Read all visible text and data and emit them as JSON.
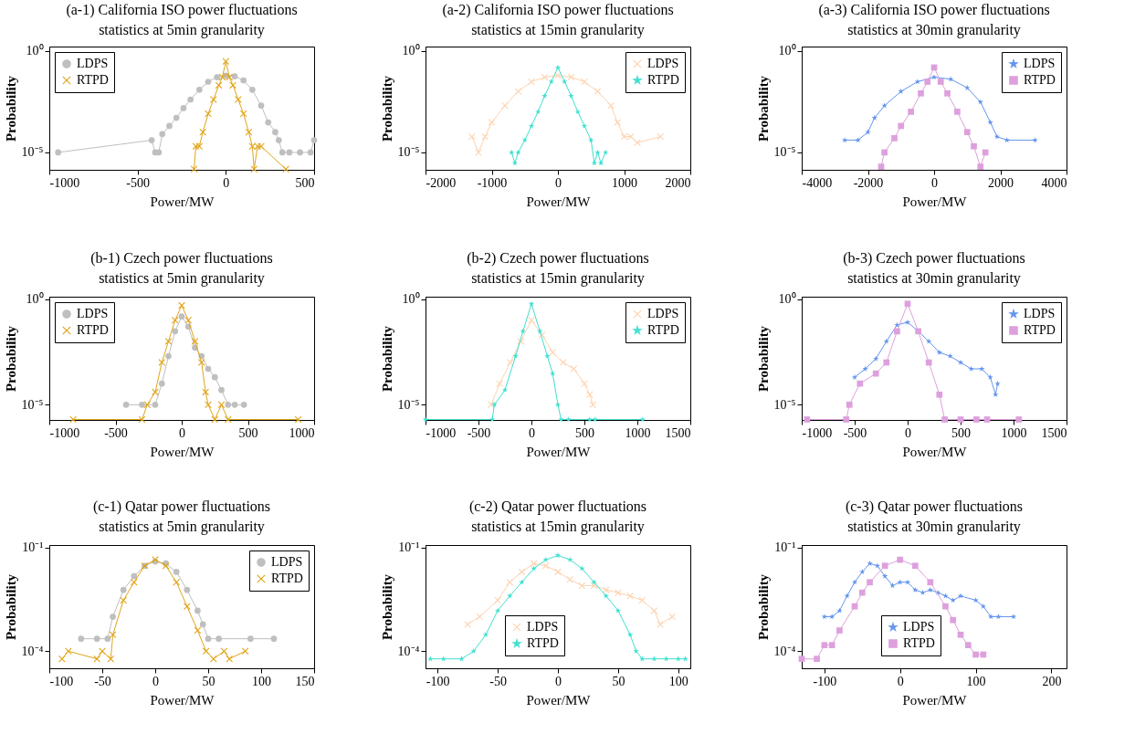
{
  "chart_data": [
    {
      "type": "line",
      "title": "(a-1) California ISO power fluctuations\nstatistics at 5min granularity",
      "xlabel": "Power/MW",
      "ylabel": "Probability",
      "log": "y",
      "legend": "top left",
      "xlim": [
        -1000,
        500
      ],
      "xticks": [
        -1000,
        -500,
        0,
        500
      ],
      "ylim": [
        1.4e-06,
        1.6
      ],
      "yticks": [
        {
          "value": 1,
          "label": "10⁰"
        },
        {
          "value": 1e-05,
          "label": "10⁻⁵"
        }
      ],
      "series": [
        {
          "name": "LDPS",
          "color": "#bfbfbf",
          "marker": "circle",
          "x": [
            -950,
            -420,
            -400,
            -380,
            -360,
            -320,
            -280,
            -240,
            -200,
            -150,
            -100,
            -50,
            0,
            50,
            100,
            150,
            200,
            240,
            280,
            300,
            320,
            360,
            420,
            480,
            500
          ],
          "values": [
            1e-05,
            4e-05,
            1e-05,
            1e-05,
            8e-05,
            0.0002,
            0.0005,
            0.0015,
            0.004,
            0.012,
            0.03,
            0.05,
            0.06,
            0.055,
            0.035,
            0.012,
            0.002,
            0.0003,
            0.0001,
            4e-05,
            1e-05,
            1e-05,
            1e-05,
            1e-05,
            4e-05
          ]
        },
        {
          "name": "RTPD",
          "color": "#e0a419",
          "marker": "cross",
          "x": [
            -180,
            -170,
            -150,
            -130,
            -100,
            -70,
            -40,
            -20,
            0,
            20,
            40,
            70,
            100,
            130,
            150,
            160,
            180,
            200,
            340
          ],
          "values": [
            1.5e-06,
            2e-05,
            2e-05,
            0.0001,
            0.0008,
            0.004,
            0.02,
            0.05,
            0.3,
            0.05,
            0.02,
            0.004,
            0.0008,
            0.0001,
            2e-05,
            1.5e-06,
            2e-05,
            2e-05,
            1.5e-06
          ]
        }
      ]
    },
    {
      "type": "line",
      "title": "(a-2) California ISO power fluctuations\nstatistics at 15min granularity",
      "xlabel": "Power/MW",
      "ylabel": "Probability",
      "log": "y",
      "legend": "top right",
      "xlim": [
        -2000,
        2000
      ],
      "xticks": [
        -2000,
        -1000,
        0,
        1000,
        2000
      ],
      "ylim": [
        1.4e-06,
        1.6
      ],
      "yticks": [
        {
          "value": 1,
          "label": "10⁰"
        },
        {
          "value": 1e-05,
          "label": "10⁻⁵"
        }
      ],
      "series": [
        {
          "name": "LDPS",
          "color": "#fdd3b0",
          "marker": "cross",
          "x": [
            -1300,
            -1200,
            -1100,
            -1000,
            -800,
            -600,
            -400,
            -200,
            0,
            200,
            400,
            600,
            800,
            900,
            1000,
            1100,
            1200,
            1550
          ],
          "values": [
            6e-05,
            1e-05,
            6e-05,
            0.0003,
            0.002,
            0.01,
            0.03,
            0.05,
            0.06,
            0.05,
            0.03,
            0.01,
            0.002,
            0.0003,
            6e-05,
            6e-05,
            3e-05,
            6e-05
          ]
        },
        {
          "name": "RTPD",
          "color": "#40e0d0",
          "marker": "star",
          "x": [
            -700,
            -650,
            -600,
            -500,
            -400,
            -300,
            -200,
            -100,
            0,
            100,
            200,
            300,
            400,
            500,
            550,
            600,
            650,
            720
          ],
          "values": [
            1e-05,
            3e-06,
            1e-05,
            4e-05,
            0.0002,
            0.001,
            0.006,
            0.03,
            0.15,
            0.03,
            0.006,
            0.001,
            0.0002,
            4e-05,
            3e-06,
            1e-05,
            3e-06,
            1e-05
          ]
        }
      ]
    },
    {
      "type": "line",
      "title": "(a-3) California ISO power fluctuations\nstatistics at 30min granularity",
      "xlabel": "Power/MW",
      "ylabel": "Probability",
      "log": "y",
      "legend": "top right",
      "xlim": [
        -4000,
        4000
      ],
      "xticks": [
        -4000,
        -2000,
        0,
        2000,
        4000
      ],
      "ylim": [
        1.4e-06,
        1.6
      ],
      "yticks": [
        {
          "value": 1,
          "label": "10⁰"
        },
        {
          "value": 1e-05,
          "label": "10⁻⁵"
        }
      ],
      "series": [
        {
          "name": "LDPS",
          "color": "#6495ed",
          "marker": "star",
          "x": [
            -2700,
            -2300,
            -2000,
            -1800,
            -1500,
            -1000,
            -500,
            0,
            500,
            1000,
            1400,
            1700,
            1900,
            2200,
            3050
          ],
          "values": [
            4e-05,
            4e-05,
            0.0001,
            0.0005,
            0.002,
            0.01,
            0.03,
            0.05,
            0.04,
            0.015,
            0.003,
            0.0003,
            6e-05,
            4e-05,
            4e-05
          ]
        },
        {
          "name": "RTPD",
          "color": "#dda0dd",
          "marker": "square",
          "x": [
            -1600,
            -1500,
            -1200,
            -1000,
            -700,
            -400,
            -200,
            0,
            200,
            400,
            700,
            1000,
            1200,
            1400,
            1550
          ],
          "values": [
            2e-06,
            1e-05,
            5e-05,
            0.0002,
            0.001,
            0.008,
            0.03,
            0.15,
            0.03,
            0.008,
            0.001,
            0.0001,
            2e-05,
            2e-06,
            1e-05
          ]
        }
      ]
    },
    {
      "type": "line",
      "title": "(b-1) Czech power fluctuations\nstatistics at 5min granularity",
      "xlabel": "Power/MW",
      "ylabel": "Probability",
      "log": "y",
      "legend": "top left",
      "xlim": [
        -1000,
        1000
      ],
      "xticks": [
        -1000,
        -500,
        0,
        500,
        1000
      ],
      "ylim": [
        1.9e-06,
        1.3
      ],
      "yticks": [
        {
          "value": 1,
          "label": "10⁰"
        },
        {
          "value": 1e-05,
          "label": "10⁻⁵"
        }
      ],
      "series": [
        {
          "name": "LDPS",
          "color": "#bfbfbf",
          "marker": "circle",
          "x": [
            -420,
            -300,
            -200,
            -150,
            -100,
            -50,
            0,
            50,
            100,
            150,
            200,
            250,
            300,
            350,
            400,
            470
          ],
          "values": [
            1e-05,
            1e-05,
            1e-05,
            0.0001,
            0.002,
            0.03,
            0.15,
            0.05,
            0.005,
            0.002,
            0.0005,
            0.0002,
            5e-05,
            1e-05,
            1e-05,
            1e-05
          ]
        },
        {
          "name": "RTPD",
          "color": "#e0a419",
          "marker": "cross",
          "x": [
            -820,
            -300,
            -260,
            -200,
            -150,
            -100,
            -50,
            0,
            50,
            100,
            150,
            180,
            200,
            250,
            300,
            350,
            880
          ],
          "values": [
            2e-06,
            2e-06,
            1e-05,
            4e-05,
            0.001,
            0.01,
            0.1,
            0.5,
            0.1,
            0.01,
            0.001,
            4e-05,
            1e-05,
            2e-06,
            1e-05,
            2e-06,
            2e-06
          ]
        }
      ]
    },
    {
      "type": "line",
      "title": "(b-2) Czech power fluctuations\nstatistics at 15min granularity",
      "xlabel": "Power/MW",
      "ylabel": "Probability",
      "log": "y",
      "legend": "top right",
      "xlim": [
        -1000,
        1500
      ],
      "xticks": [
        -1000,
        -500,
        0,
        500,
        1000,
        1500
      ],
      "ylim": [
        1.9e-06,
        1.3
      ],
      "yticks": [
        {
          "value": 1,
          "label": "10⁰"
        },
        {
          "value": 1e-05,
          "label": "10⁻⁵"
        }
      ],
      "series": [
        {
          "name": "LDPS",
          "color": "#fdd3b0",
          "marker": "cross",
          "x": [
            -380,
            -300,
            -200,
            -100,
            0,
            100,
            200,
            300,
            400,
            500,
            550,
            580
          ],
          "values": [
            1e-05,
            0.0001,
            0.001,
            0.01,
            0.1,
            0.02,
            0.003,
            0.001,
            0.0005,
            0.0001,
            3e-05,
            1e-05
          ]
        },
        {
          "name": "RTPD",
          "color": "#40e0d0",
          "marker": "star",
          "x": [
            -1000,
            -370,
            -350,
            -250,
            -150,
            -80,
            0,
            80,
            150,
            200,
            250,
            280,
            350,
            550,
            600,
            1050
          ],
          "values": [
            2e-06,
            2e-06,
            1e-05,
            5e-05,
            0.002,
            0.03,
            0.6,
            0.03,
            0.002,
            0.0003,
            1e-05,
            2e-06,
            2e-06,
            2e-06,
            2e-06,
            2e-06
          ]
        }
      ]
    },
    {
      "type": "line",
      "title": "(b-3) Czech power fluctuations\nstatistics at 30min granularity",
      "xlabel": "Power/MW",
      "ylabel": "Probability",
      "log": "y",
      "legend": "top right",
      "xlim": [
        -1000,
        1500
      ],
      "xticks": [
        -1000,
        -500,
        0,
        500,
        1000,
        1500
      ],
      "ylim": [
        1.9e-06,
        1.3
      ],
      "yticks": [
        {
          "value": 1,
          "label": "10⁰"
        },
        {
          "value": 1e-05,
          "label": "10⁻⁵"
        }
      ],
      "series": [
        {
          "name": "LDPS",
          "color": "#6495ed",
          "marker": "star",
          "x": [
            -500,
            -400,
            -300,
            -200,
            -100,
            0,
            100,
            200,
            300,
            400,
            500,
            600,
            700,
            780,
            830,
            850
          ],
          "values": [
            0.0002,
            0.0005,
            0.0015,
            0.01,
            0.06,
            0.08,
            0.03,
            0.01,
            0.003,
            0.002,
            0.001,
            0.0005,
            0.0005,
            0.0002,
            3e-05,
            0.0001
          ]
        },
        {
          "name": "RTPD",
          "color": "#dda0dd",
          "marker": "square",
          "x": [
            -950,
            -580,
            -550,
            -450,
            -300,
            -200,
            -100,
            0,
            100,
            200,
            300,
            350,
            500,
            650,
            750,
            1050
          ],
          "values": [
            2e-06,
            2e-06,
            1e-05,
            0.0001,
            0.0003,
            0.001,
            0.03,
            0.6,
            0.03,
            0.001,
            3e-05,
            2e-06,
            2e-06,
            2e-06,
            2e-06,
            2e-06
          ]
        }
      ]
    },
    {
      "type": "line",
      "title": "(c-1) Qatar power fluctuations\nstatistics at 5min granularity",
      "xlabel": "Power/MW",
      "ylabel": "Probability",
      "log": "y",
      "legend": "top right",
      "xlim": [
        -100,
        150
      ],
      "xticks": [
        -100,
        -50,
        0,
        50,
        100,
        150
      ],
      "ylim": [
        3.2e-05,
        0.12
      ],
      "yticks": [
        {
          "value": 0.1,
          "label": "10⁻¹"
        },
        {
          "value": 0.0001,
          "label": "10⁻⁴"
        }
      ],
      "series": [
        {
          "name": "LDPS",
          "color": "#bfbfbf",
          "marker": "circle",
          "x": [
            -70,
            -55,
            -45,
            -40,
            -30,
            -20,
            -10,
            0,
            10,
            20,
            30,
            40,
            45,
            50,
            60,
            90,
            112
          ],
          "values": [
            0.00023,
            0.00023,
            0.00023,
            0.001,
            0.006,
            0.015,
            0.03,
            0.04,
            0.035,
            0.02,
            0.006,
            0.0015,
            0.0006,
            0.00023,
            0.00023,
            0.00023,
            0.00023
          ]
        },
        {
          "name": "RTPD",
          "color": "#e0a419",
          "marker": "cross",
          "x": [
            -88,
            -82,
            -55,
            -50,
            -42,
            -40,
            -30,
            -20,
            -10,
            0,
            10,
            20,
            30,
            40,
            48,
            55,
            65,
            70,
            85
          ],
          "values": [
            6e-05,
            0.0001,
            6e-05,
            0.0001,
            6e-05,
            0.0003,
            0.003,
            0.01,
            0.03,
            0.045,
            0.03,
            0.01,
            0.002,
            0.0004,
            0.0001,
            6e-05,
            0.0001,
            6e-05,
            0.0001
          ]
        }
      ]
    },
    {
      "type": "line",
      "title": "(c-2) Qatar power fluctuations\nstatistics at 15min granularity",
      "xlabel": "Power/MW",
      "ylabel": "Probability",
      "log": "y",
      "legend": "bottom",
      "xlim": [
        -110,
        110
      ],
      "xticks": [
        -100,
        -50,
        0,
        50,
        100
      ],
      "ylim": [
        3.2e-05,
        0.12
      ],
      "yticks": [
        {
          "value": 0.1,
          "label": "10⁻¹"
        },
        {
          "value": 0.0001,
          "label": "10⁻⁴"
        }
      ],
      "series": [
        {
          "name": "LDPS",
          "color": "#fdd3b0",
          "marker": "cross",
          "x": [
            -75,
            -65,
            -50,
            -40,
            -30,
            -20,
            -10,
            0,
            10,
            20,
            30,
            40,
            50,
            60,
            70,
            80,
            85,
            95
          ],
          "values": [
            0.0006,
            0.001,
            0.003,
            0.01,
            0.02,
            0.035,
            0.03,
            0.02,
            0.012,
            0.008,
            0.008,
            0.006,
            0.005,
            0.004,
            0.003,
            0.0015,
            0.0006,
            0.001
          ]
        },
        {
          "name": "RTPD",
          "color": "#40e0d0",
          "marker": "star",
          "x": [
            -106,
            -95,
            -80,
            -70,
            -60,
            -50,
            -40,
            -30,
            -20,
            -10,
            0,
            10,
            20,
            30,
            40,
            50,
            60,
            65,
            70,
            80,
            90,
            100,
            106
          ],
          "values": [
            6e-05,
            6e-05,
            6e-05,
            0.0001,
            0.0003,
            0.0015,
            0.004,
            0.01,
            0.025,
            0.045,
            0.06,
            0.045,
            0.025,
            0.01,
            0.004,
            0.0015,
            0.0003,
            0.0001,
            6e-05,
            6e-05,
            6e-05,
            6e-05,
            6e-05
          ]
        }
      ]
    },
    {
      "type": "line",
      "title": "(c-3) Qatar power fluctuations\nstatistics at 30min granularity",
      "xlabel": "Power/MW",
      "ylabel": "Probability",
      "log": "y",
      "legend": "bottom",
      "xlim": [
        -130,
        220
      ],
      "xticks": [
        -100,
        0,
        100,
        200
      ],
      "ylim": [
        3.2e-05,
        0.12
      ],
      "yticks": [
        {
          "value": 0.1,
          "label": "10⁻¹"
        },
        {
          "value": 0.0001,
          "label": "10⁻⁴"
        }
      ],
      "series": [
        {
          "name": "LDPS",
          "color": "#6495ed",
          "marker": "star",
          "x": [
            -100,
            -90,
            -80,
            -70,
            -60,
            -50,
            -40,
            -30,
            -20,
            -10,
            0,
            10,
            20,
            30,
            40,
            50,
            60,
            70,
            80,
            100,
            110,
            120,
            130,
            150
          ],
          "values": [
            0.001,
            0.001,
            0.0015,
            0.004,
            0.01,
            0.02,
            0.035,
            0.03,
            0.015,
            0.008,
            0.01,
            0.01,
            0.006,
            0.005,
            0.006,
            0.005,
            0.004,
            0.003,
            0.004,
            0.003,
            0.002,
            0.001,
            0.001,
            0.001
          ]
        },
        {
          "name": "RTPD",
          "color": "#dda0dd",
          "marker": "square",
          "x": [
            -130,
            -110,
            -100,
            -90,
            -80,
            -60,
            -50,
            -40,
            -20,
            0,
            20,
            40,
            60,
            70,
            80,
            90,
            100,
            110
          ],
          "values": [
            6e-05,
            6e-05,
            0.00015,
            0.00015,
            0.0004,
            0.002,
            0.005,
            0.01,
            0.03,
            0.045,
            0.03,
            0.01,
            0.002,
            0.0008,
            0.0003,
            0.00015,
            8e-05,
            8e-05
          ]
        }
      ]
    }
  ]
}
